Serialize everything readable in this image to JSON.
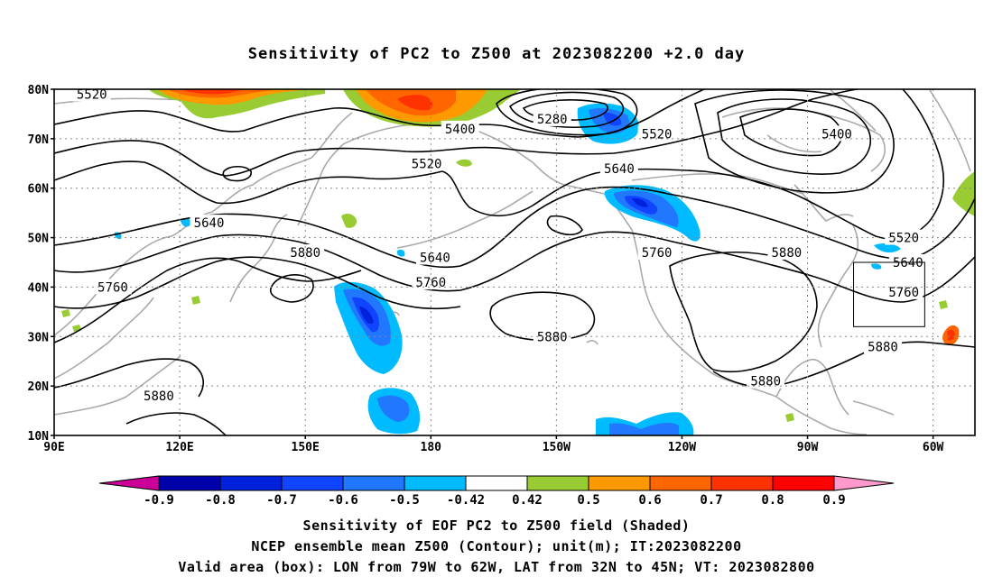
{
  "title": "Sensitivity of PC2 to Z500 at 2023082200 +2.0 day",
  "axes": {
    "lat_labels": [
      "80N",
      "70N",
      "60N",
      "50N",
      "40N",
      "30N",
      "20N",
      "10N"
    ],
    "lon_labels": [
      "90E",
      "120E",
      "150E",
      "180",
      "150W",
      "120W",
      "90W",
      "60W"
    ]
  },
  "contour_labels": [
    {
      "text": "5520",
      "lon": 99,
      "lat": 79
    },
    {
      "text": "5400",
      "lon": 187,
      "lat": 72
    },
    {
      "text": "5280",
      "lon": 209,
      "lat": 74
    },
    {
      "text": "5520",
      "lon": 234,
      "lat": 71
    },
    {
      "text": "5400",
      "lon": 277,
      "lat": 71
    },
    {
      "text": "5520",
      "lon": 179,
      "lat": 65
    },
    {
      "text": "5640",
      "lon": 225,
      "lat": 64
    },
    {
      "text": "5640",
      "lon": 127,
      "lat": 53
    },
    {
      "text": "5880",
      "lon": 150,
      "lat": 47
    },
    {
      "text": "5640",
      "lon": 181,
      "lat": 46
    },
    {
      "text": "5760",
      "lon": 180,
      "lat": 41
    },
    {
      "text": "5760",
      "lon": 234,
      "lat": 47
    },
    {
      "text": "5880",
      "lon": 265,
      "lat": 47
    },
    {
      "text": "5520",
      "lon": 293,
      "lat": 50
    },
    {
      "text": "5640",
      "lon": 294,
      "lat": 45
    },
    {
      "text": "5760",
      "lon": 104,
      "lat": 40
    },
    {
      "text": "5760",
      "lon": 293,
      "lat": 39
    },
    {
      "text": "5880",
      "lon": 209,
      "lat": 30
    },
    {
      "text": "5880",
      "lon": 288,
      "lat": 28
    },
    {
      "text": "5880",
      "lon": 260,
      "lat": 21
    },
    {
      "text": "5880",
      "lon": 115,
      "lat": 18
    }
  ],
  "valid_box": {
    "lon_min": -79,
    "lon_max": -62,
    "lat_min": 32,
    "lat_max": 45
  },
  "colorbar": {
    "labels": [
      "-0.9",
      "-0.8",
      "-0.7",
      "-0.6",
      "-0.5",
      "-0.42",
      "0.42",
      "0.5",
      "0.6",
      "0.7",
      "0.8",
      "0.9"
    ],
    "colors": [
      "#cc0099",
      "#0000aa",
      "#0022dd",
      "#1144ff",
      "#2277ff",
      "#00bbff",
      "#ffffff",
      "#99cc33",
      "#ff9900",
      "#ff6600",
      "#ff3300",
      "#ff0000",
      "#ff99cc"
    ]
  },
  "captions": [
    "Sensitivity of EOF PC2 to Z500 field (Shaded)",
    "NCEP ensemble mean Z500 (Contour); unit(m); IT:2023082200",
    "Valid area (box): LON from 79W to 62W, LAT from 32N to 45N; VT: 2023082800"
  ]
}
